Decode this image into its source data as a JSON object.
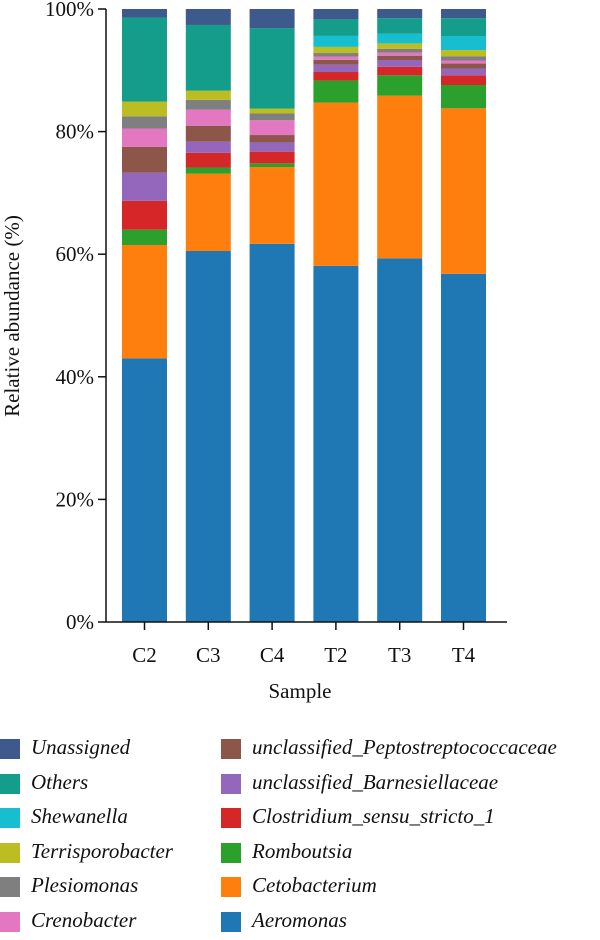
{
  "chart_data": {
    "type": "bar",
    "stacked": true,
    "xlabel": "Sample",
    "ylabel": "Relative abundance (%)",
    "ylim": [
      0,
      100
    ],
    "yticks": [
      0,
      20,
      40,
      60,
      80,
      100
    ],
    "ytick_labels": [
      "0%",
      "20%",
      "40%",
      "60%",
      "80%",
      "100%"
    ],
    "categories": [
      "C2",
      "C3",
      "C4",
      "T2",
      "T3",
      "T4"
    ],
    "series": [
      {
        "name": "Aeromonas",
        "color": "#1f77b4",
        "values": [
          43.0,
          60.4,
          61.5,
          58.2,
          59.2,
          56.8
        ]
      },
      {
        "name": "Cetobacterium",
        "color": "#ff7f0e",
        "values": [
          18.5,
          12.6,
          12.5,
          26.7,
          26.5,
          27.0
        ]
      },
      {
        "name": "Romboutsia",
        "color": "#2ca02c",
        "values": [
          2.5,
          1.0,
          0.6,
          3.6,
          3.3,
          3.8
        ]
      },
      {
        "name": "Clostridium_sensu_stricto_1",
        "color": "#d62728",
        "values": [
          4.7,
          2.4,
          1.9,
          1.4,
          1.4,
          1.6
        ]
      },
      {
        "name": "unclassified_Barnesiellaceae",
        "color": "#9467bd",
        "values": [
          4.6,
          1.8,
          1.5,
          1.2,
          1.1,
          1.1
        ]
      },
      {
        "name": "unclassified_Peptostreptococcaceae",
        "color": "#8c564b",
        "values": [
          4.2,
          2.6,
          1.2,
          0.8,
          0.7,
          0.8
        ]
      },
      {
        "name": "Crenobacter",
        "color": "#e377c2",
        "values": [
          3.0,
          2.6,
          2.4,
          0.5,
          0.5,
          0.5
        ]
      },
      {
        "name": "Plesiomonas",
        "color": "#7f7f7f",
        "values": [
          2.0,
          1.6,
          1.1,
          0.6,
          0.6,
          0.7
        ]
      },
      {
        "name": "Terrisporobacter",
        "color": "#bcbd22",
        "values": [
          2.4,
          1.5,
          0.8,
          1.0,
          0.9,
          1.0
        ]
      },
      {
        "name": "Shewanella",
        "color": "#17becf",
        "values": [
          0.0,
          0.0,
          0.0,
          1.8,
          1.6,
          2.3
        ]
      },
      {
        "name": "Others",
        "color": "#139d8a",
        "values": [
          13.7,
          10.7,
          13.1,
          2.7,
          2.5,
          2.9
        ]
      },
      {
        "name": "Unassigned",
        "color": "#3e5a8c",
        "values": [
          1.4,
          2.6,
          3.1,
          1.7,
          1.5,
          1.5
        ]
      }
    ]
  },
  "legend": {
    "left_column": [
      "Unassigned",
      "Others",
      "Shewanella",
      "Terrisporobacter",
      "Plesiomonas",
      "Crenobacter"
    ],
    "right_column": [
      "unclassified_Peptostreptococcaceae",
      "unclassified_Barnesiellaceae",
      "Clostridium_sensu_stricto_1",
      "Romboutsia",
      "Cetobacterium",
      "Aeromonas"
    ]
  }
}
